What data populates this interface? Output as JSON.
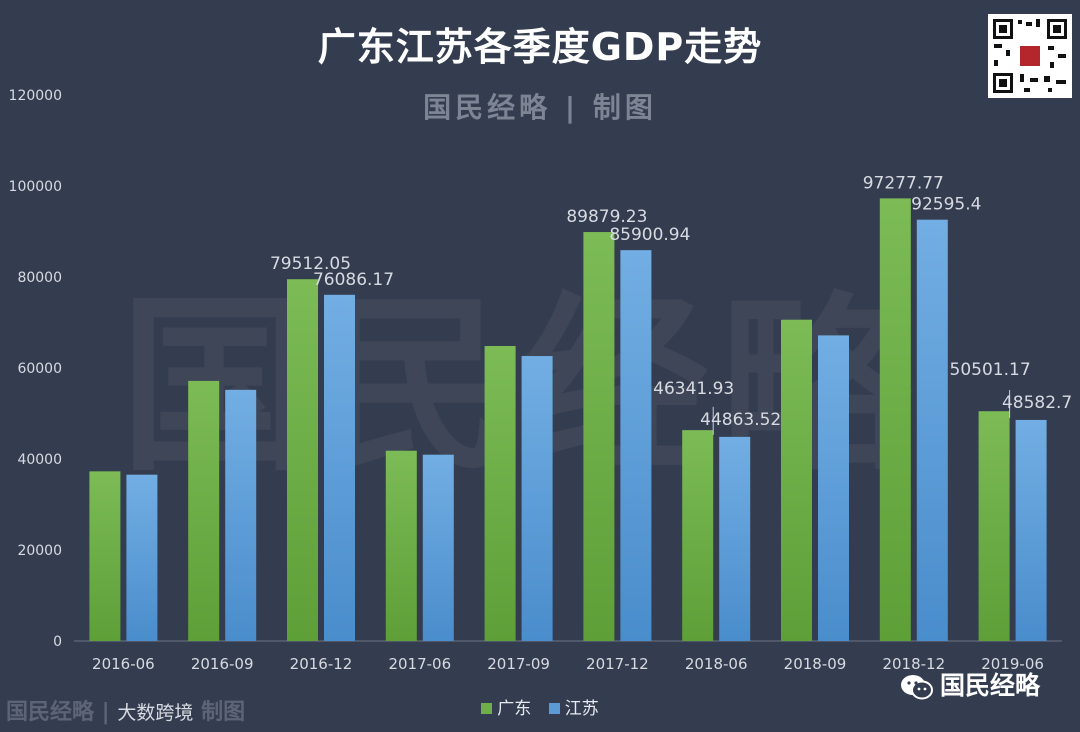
{
  "header": {
    "title": "广东江苏各季度GDP走势",
    "credit": "国民经略 | 制图",
    "watermark": "国民经略"
  },
  "colors": {
    "background": "#343d4f",
    "guangdong": "#6fae48",
    "jiangsu": "#5b9bd5",
    "text": "#d7dae1"
  },
  "chart_data": {
    "type": "bar",
    "title": "广东江苏各季度GDP走势",
    "categories": [
      "2016-06",
      "2016-09",
      "2016-12",
      "2017-06",
      "2017-09",
      "2017-12",
      "2018-06",
      "2018-09",
      "2018-12",
      "2019-06"
    ],
    "series": [
      {
        "name": "广东",
        "values": [
          37285,
          57163,
          79512.05,
          41820,
          64835,
          89879.23,
          46341.93,
          70613,
          97277.77,
          50501.17
        ]
      },
      {
        "name": "江苏",
        "values": [
          36554,
          55203,
          76086.17,
          40947,
          62629,
          85900.94,
          44863.52,
          67166,
          92595.4,
          48582.7
        ]
      }
    ],
    "data_labels": [
      {
        "category": "2016-12",
        "series": "广东",
        "text": "79512.05"
      },
      {
        "category": "2016-12",
        "series": "江苏",
        "text": "76086.17"
      },
      {
        "category": "2017-12",
        "series": "广东",
        "text": "89879.23"
      },
      {
        "category": "2017-12",
        "series": "江苏",
        "text": "85900.94"
      },
      {
        "category": "2018-06",
        "series": "广东",
        "text": "46341.93"
      },
      {
        "category": "2018-06",
        "series": "江苏",
        "text": "44863.52"
      },
      {
        "category": "2018-12",
        "series": "广东",
        "text": "97277.77"
      },
      {
        "category": "2018-12",
        "series": "江苏",
        "text": "92595.4"
      },
      {
        "category": "2019-06",
        "series": "广东",
        "text": "50501.17"
      },
      {
        "category": "2019-06",
        "series": "江苏",
        "text": "48582.7"
      }
    ],
    "yticks": [
      "0",
      "20000",
      "40000",
      "60000",
      "80000",
      "100000",
      "120000"
    ],
    "ylim": [
      0,
      120000
    ],
    "xlabel": "",
    "ylabel": "",
    "grid": false,
    "legend": "bottom-center"
  },
  "legend": {
    "items": [
      "广东",
      "江苏"
    ]
  },
  "footer": {
    "brand": "国民经略",
    "source_prefix": "国民经略 |",
    "source": "大数跨境",
    "source_suffix": "制图"
  }
}
